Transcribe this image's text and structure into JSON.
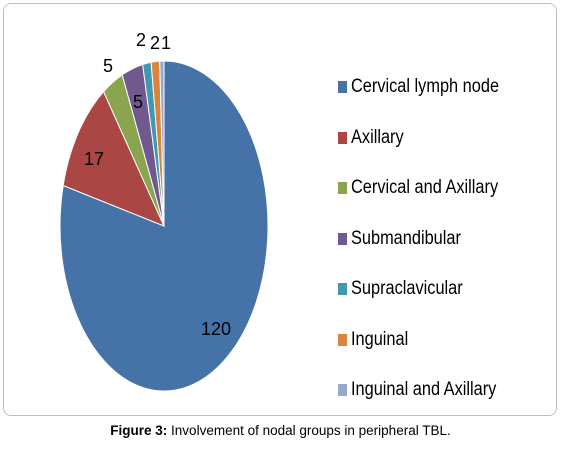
{
  "chart_data": {
    "type": "pie",
    "title": "",
    "slices": [
      {
        "label": "Cervical lymph node",
        "value": 120,
        "color": "#4572a7"
      },
      {
        "label": "Axillary",
        "value": 17,
        "color": "#aa4643"
      },
      {
        "label": "Cervical and Axillary",
        "value": 5,
        "color": "#89a54e"
      },
      {
        "label": "Submandibular",
        "value": 5,
        "color": "#71588f"
      },
      {
        "label": "Supraclavicular",
        "value": 2,
        "color": "#4198af"
      },
      {
        "label": "Inguinal",
        "value": 2,
        "color": "#db843d"
      },
      {
        "label": "Inguinal and Axillary",
        "value": 1,
        "color": "#93a9cf"
      }
    ],
    "data_labels": [
      "120",
      "17",
      "5",
      "5",
      "2",
      "2",
      "1"
    ],
    "legend_position": "right"
  },
  "caption": {
    "label": "Figure 3:",
    "text": " Involvement of nodal groups in peripheral TBL."
  }
}
